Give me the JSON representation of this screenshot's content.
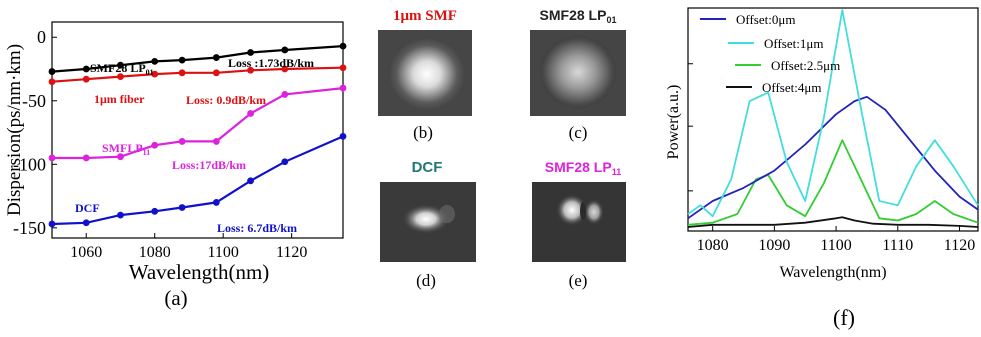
{
  "chart_data": [
    {
      "panel": "(a)",
      "type": "line",
      "xlabel": "Wavelength(nm)",
      "ylabel": "Dispersion(ps/nm·km)",
      "xlim": [
        1050,
        1135
      ],
      "ylim": [
        -158,
        12
      ],
      "xticks": [
        "1060",
        "1080",
        "1100",
        "1120"
      ],
      "yticks": [
        "0",
        "-50",
        "-100",
        "-150"
      ],
      "grid": false,
      "series": [
        {
          "name": "SMF28 LP01",
          "color": "#000000",
          "x": [
            1050,
            1060,
            1070,
            1080,
            1088,
            1098,
            1108,
            1118,
            1135
          ],
          "y": [
            -27,
            -25,
            -22,
            -19,
            -18,
            -16,
            -12,
            -10,
            -7
          ]
        },
        {
          "name": "1μm fiber",
          "color": "#dd1111",
          "x": [
            1050,
            1060,
            1070,
            1080,
            1088,
            1098,
            1108,
            1118,
            1135
          ],
          "y": [
            -35,
            -33,
            -31,
            -29,
            -28,
            -28,
            -26,
            -25,
            -24
          ]
        },
        {
          "name": "SMFLP11",
          "color": "#dd22dd",
          "x": [
            1050,
            1060,
            1070,
            1080,
            1088,
            1098,
            1108,
            1118,
            1135
          ],
          "y": [
            -95,
            -95,
            -94,
            -85,
            -82,
            -82,
            -60,
            -45,
            -40
          ]
        },
        {
          "name": "DCF",
          "color": "#1111cc",
          "x": [
            1050,
            1060,
            1070,
            1080,
            1088,
            1098,
            1108,
            1118,
            1135
          ],
          "y": [
            -147,
            -146,
            -140,
            -137,
            -134,
            -130,
            -113,
            -98,
            -78
          ]
        }
      ],
      "annotations": {
        "smf28_label": "SMF28 LP",
        "smf28_sub": "01",
        "smf28_loss": "Loss :1.73dB/km",
        "fiber_label": "1μm fiber",
        "fiber_loss": "Loss: 0.9dB/km",
        "lp11_label": "SMFLP",
        "lp11_sub": "11",
        "lp11_loss": "Loss:17dB/km",
        "dcf_label": "DCF",
        "dcf_loss": "Loss: 6.7dB/km"
      },
      "caption": "(a)"
    },
    {
      "panel": "(f)",
      "type": "line",
      "xlabel": "Wavelength(nm)",
      "ylabel": "Power(a.u.)",
      "xlim": [
        1076,
        1123
      ],
      "xticks": [
        "1080",
        "1090",
        "1100",
        "1110",
        "1120"
      ],
      "grid": false,
      "legend": "top-left",
      "series": [
        {
          "name": "Offset:0μm",
          "color": "#2222bb",
          "x": [
            1076,
            1080,
            1085,
            1090,
            1095,
            1100,
            1103,
            1105,
            1108,
            1112,
            1116,
            1120,
            1123
          ],
          "y": [
            0.04,
            0.12,
            0.18,
            0.26,
            0.38,
            0.52,
            0.58,
            0.6,
            0.54,
            0.4,
            0.26,
            0.14,
            0.08
          ]
        },
        {
          "name": "Offset:1μm",
          "color": "#44dddd",
          "x": [
            1076,
            1078,
            1080,
            1083,
            1086,
            1089,
            1092,
            1095,
            1098,
            1101,
            1104,
            1107,
            1110,
            1113,
            1116,
            1119,
            1123
          ],
          "y": [
            0.06,
            0.1,
            0.05,
            0.22,
            0.58,
            0.62,
            0.3,
            0.12,
            0.5,
            1.0,
            0.55,
            0.12,
            0.1,
            0.28,
            0.4,
            0.28,
            0.1
          ]
        },
        {
          "name": "Offset:2.5μm",
          "color": "#33cc33",
          "x": [
            1076,
            1080,
            1084,
            1087,
            1089,
            1092,
            1095,
            1098,
            1101,
            1104,
            1107,
            1110,
            1113,
            1116,
            1119,
            1123
          ],
          "y": [
            0.01,
            0.02,
            0.06,
            0.22,
            0.24,
            0.1,
            0.05,
            0.2,
            0.4,
            0.22,
            0.04,
            0.03,
            0.06,
            0.12,
            0.06,
            0.02
          ]
        },
        {
          "name": "Offset:4μm",
          "color": "#111111",
          "x": [
            1076,
            1080,
            1085,
            1090,
            1095,
            1100,
            1101,
            1103,
            1106,
            1110,
            1115,
            1120,
            1123
          ],
          "y": [
            0.0,
            0.01,
            0.01,
            0.01,
            0.02,
            0.04,
            0.045,
            0.03,
            0.015,
            0.01,
            0.01,
            0.005,
            0.0
          ]
        }
      ],
      "caption": "(f)"
    }
  ],
  "mode_panels": [
    {
      "label": "1μm SMF",
      "label_color": "#dd1111",
      "caption": "(b)"
    },
    {
      "label": "SMF28 LP",
      "label_sub": "01",
      "label_color": "#222222",
      "caption": "(c)"
    },
    {
      "label": "DCF",
      "label_color": "#227777",
      "caption": "(d)"
    },
    {
      "label": "SMF28 LP",
      "label_sub": "11",
      "label_color": "#dd22dd",
      "caption": "(e)"
    }
  ]
}
